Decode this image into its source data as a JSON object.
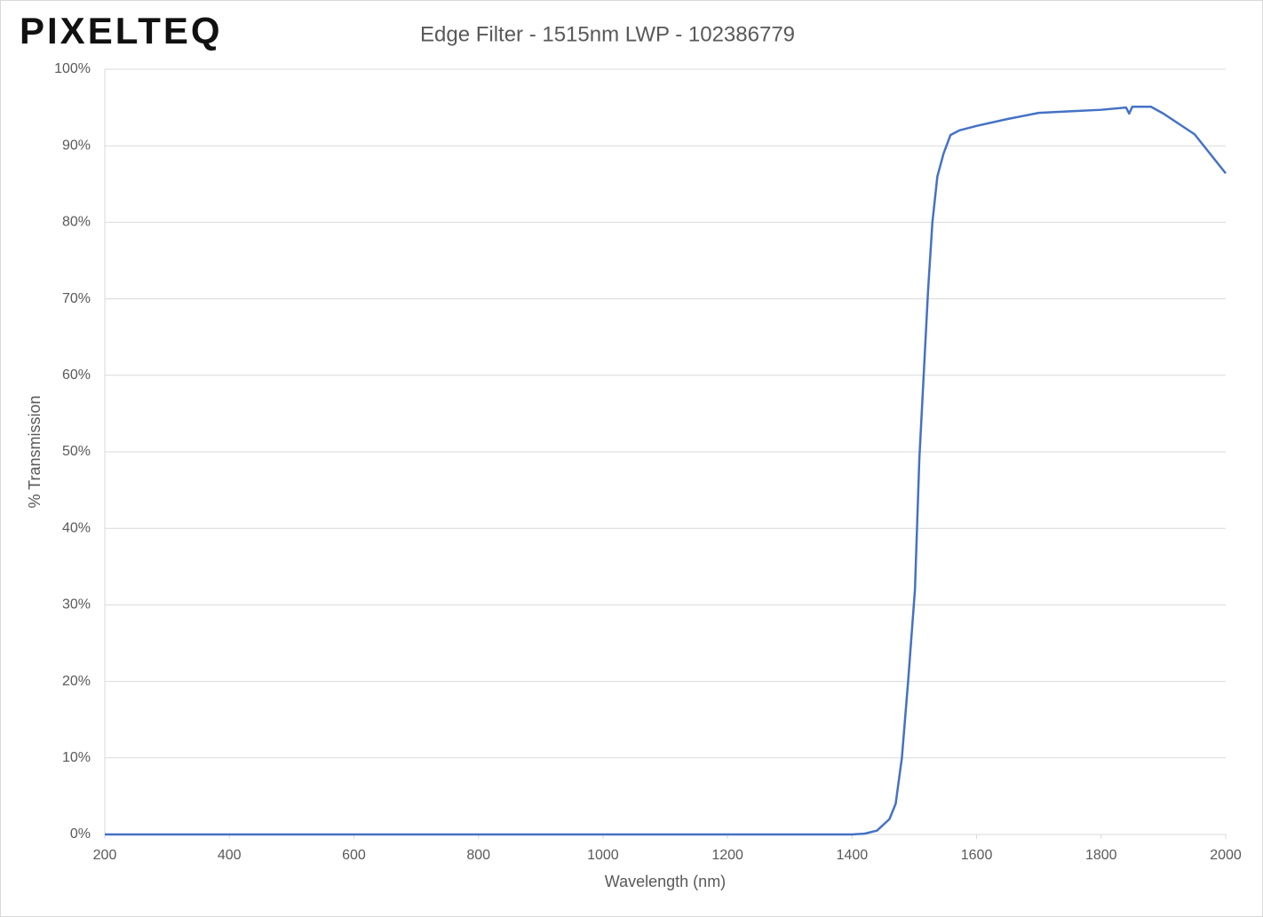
{
  "logo": "PIXELTEQ",
  "chart_data": {
    "type": "line",
    "title": "Edge Filter - 1515nm LWP - 102386779",
    "xlabel": "Wavelength (nm)",
    "ylabel": "% Transmission",
    "x": [
      200,
      400,
      600,
      800,
      1000,
      1200,
      1400,
      1420,
      1440,
      1460,
      1470,
      1480,
      1490,
      1501,
      1508,
      1515,
      1522,
      1529,
      1537,
      1547,
      1558,
      1572,
      1600,
      1650,
      1700,
      1750,
      1800,
      1840,
      1845,
      1850,
      1880,
      1900,
      1950,
      2000
    ],
    "series": [
      {
        "name": "Transmission",
        "color": "#4472c4",
        "values": [
          0,
          0,
          0,
          0,
          0,
          0,
          0,
          0.1,
          0.5,
          2,
          4,
          10,
          20,
          32,
          49,
          60,
          71,
          80,
          86,
          89,
          91.4,
          92,
          92.6,
          93.5,
          94.3,
          94.5,
          94.7,
          95,
          94.2,
          95.1,
          95.1,
          94.2,
          91.5,
          86.4
        ]
      }
    ],
    "xlim": [
      200,
      2000
    ],
    "xticks": [
      200,
      400,
      600,
      800,
      1000,
      1200,
      1400,
      1600,
      1800,
      2000
    ],
    "ylim": [
      0,
      100
    ],
    "yticks": [
      {
        "value": 0,
        "label": "0%"
      },
      {
        "value": 10,
        "label": "10%"
      },
      {
        "value": 20,
        "label": "20%"
      },
      {
        "value": 30,
        "label": "30%"
      },
      {
        "value": 40,
        "label": "40%"
      },
      {
        "value": 50,
        "label": "50%"
      },
      {
        "value": 60,
        "label": "60%"
      },
      {
        "value": 70,
        "label": "70%"
      },
      {
        "value": 80,
        "label": "80%"
      },
      {
        "value": 90,
        "label": "90%"
      },
      {
        "value": 100,
        "label": "100%"
      }
    ],
    "grid": true
  }
}
